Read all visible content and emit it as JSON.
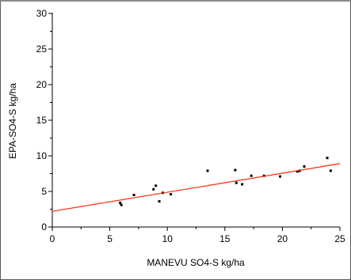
{
  "chart_data": {
    "type": "scatter",
    "title": "",
    "xlabel": "MANEVU SO4-S kg/ha",
    "ylabel": "EPA-SO4-S kg/ha",
    "xlim": [
      0,
      25
    ],
    "ylim": [
      0,
      30
    ],
    "x_ticks": [
      "0",
      "5",
      "10",
      "15",
      "20",
      "25"
    ],
    "y_ticks": [
      "0",
      "5",
      "10",
      "15",
      "20",
      "25",
      "30"
    ],
    "grid": false,
    "legend": "none",
    "series": [
      {
        "type": "scatter",
        "color": "#000000",
        "points": [
          {
            "x": 5.9,
            "y": 3.4
          },
          {
            "x": 6.0,
            "y": 3.1
          },
          {
            "x": 7.1,
            "y": 4.5
          },
          {
            "x": 8.8,
            "y": 5.3
          },
          {
            "x": 9.0,
            "y": 5.8
          },
          {
            "x": 9.3,
            "y": 3.6
          },
          {
            "x": 9.6,
            "y": 4.8
          },
          {
            "x": 10.3,
            "y": 4.6
          },
          {
            "x": 13.5,
            "y": 7.9
          },
          {
            "x": 15.9,
            "y": 8.0
          },
          {
            "x": 16.0,
            "y": 6.2
          },
          {
            "x": 16.5,
            "y": 6.0
          },
          {
            "x": 17.3,
            "y": 7.2
          },
          {
            "x": 18.4,
            "y": 7.2
          },
          {
            "x": 19.8,
            "y": 7.1
          },
          {
            "x": 21.3,
            "y": 7.8
          },
          {
            "x": 21.5,
            "y": 7.9
          },
          {
            "x": 21.9,
            "y": 8.5
          },
          {
            "x": 23.9,
            "y": 9.7
          },
          {
            "x": 24.2,
            "y": 7.9
          }
        ]
      },
      {
        "type": "line",
        "color": "#ff2a00",
        "points": [
          {
            "x": 0,
            "y": 2.2
          },
          {
            "x": 25,
            "y": 8.9
          }
        ]
      }
    ]
  }
}
